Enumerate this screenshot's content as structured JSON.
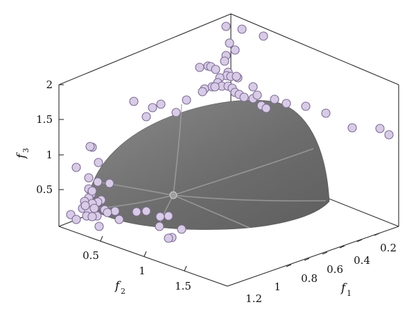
{
  "chart_data": {
    "type": "scatter",
    "title": "",
    "x_axis": {
      "label": "f",
      "subscript": "1",
      "ticks": [
        "0.2",
        "0.4",
        "0.6",
        "0.8",
        "1",
        "1.2"
      ]
    },
    "y_axis": {
      "label": "f",
      "subscript": "2",
      "ticks": [
        "0.5",
        "1",
        "1.5"
      ]
    },
    "z_axis": {
      "label": "f",
      "subscript": "3",
      "ticks": [
        "0.5",
        "1",
        "1.5",
        "2"
      ]
    },
    "surface": {
      "shape": "spherical Pareto front octant",
      "color": "#6e6e6e"
    },
    "marker_color": "#d8cbe6",
    "points_screen_approx": [
      [
        326,
        38
      ],
      [
        349,
        42
      ],
      [
        380,
        52
      ],
      [
        331,
        62
      ],
      [
        339,
        72
      ],
      [
        326,
        80
      ],
      [
        324,
        88
      ],
      [
        288,
        97
      ],
      [
        300,
        95
      ],
      [
        304,
        96
      ],
      [
        311,
        100
      ],
      [
        329,
        104
      ],
      [
        343,
        112
      ],
      [
        327,
        109
      ],
      [
        333,
        110
      ],
      [
        341,
        110
      ],
      [
        317,
        112
      ],
      [
        314,
        119
      ],
      [
        320,
        124
      ],
      [
        306,
        125
      ],
      [
        295,
        128
      ],
      [
        310,
        125
      ],
      [
        329,
        124
      ],
      [
        335,
        127
      ],
      [
        339,
        133
      ],
      [
        345,
        136
      ],
      [
        352,
        140
      ],
      [
        365,
        142
      ],
      [
        365,
        125
      ],
      [
        371,
        137
      ],
      [
        292,
        132
      ],
      [
        269,
        144
      ],
      [
        396,
        143
      ],
      [
        413,
        149
      ],
      [
        377,
        152
      ],
      [
        384,
        156
      ],
      [
        441,
        153
      ],
      [
        470,
        163
      ],
      [
        508,
        184
      ],
      [
        548,
        185
      ],
      [
        561,
        194
      ],
      [
        193,
        146
      ],
      [
        232,
        150
      ],
      [
        220,
        155
      ],
      [
        211,
        168
      ],
      [
        254,
        162
      ],
      [
        133,
        212
      ],
      [
        130,
        211
      ],
      [
        142,
        234
      ],
      [
        110,
        241
      ],
      [
        128,
        256
      ],
      [
        141,
        262
      ],
      [
        158,
        264
      ],
      [
        128,
        272
      ],
      [
        132,
        279
      ],
      [
        128,
        285
      ],
      [
        122,
        290
      ],
      [
        146,
        288
      ],
      [
        141,
        291
      ],
      [
        133,
        293
      ],
      [
        119,
        300
      ],
      [
        128,
        303
      ],
      [
        136,
        300
      ],
      [
        151,
        302
      ],
      [
        166,
        304
      ],
      [
        155,
        306
      ],
      [
        140,
        311
      ],
      [
        125,
        311
      ],
      [
        133,
        312
      ],
      [
        102,
        309
      ],
      [
        110,
        316
      ],
      [
        172,
        316
      ],
      [
        197,
        305
      ],
      [
        211,
        304
      ],
      [
        231,
        312
      ],
      [
        243,
        311
      ],
      [
        230,
        326
      ],
      [
        143,
        326
      ],
      [
        262,
        330
      ],
      [
        248,
        342
      ],
      [
        243,
        343
      ],
      [
        133,
        275
      ],
      [
        123,
        296
      ]
    ]
  }
}
